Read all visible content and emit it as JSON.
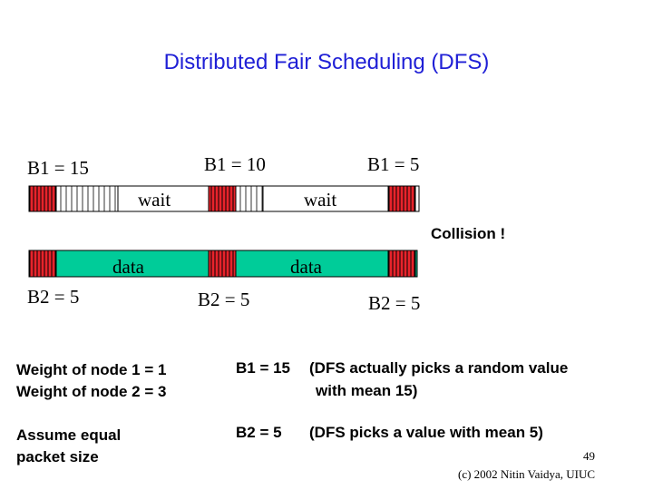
{
  "title": "Distributed Fair Scheduling (DFS)",
  "timeline_labels": {
    "b1_first": "B1 = 15",
    "b1_second": "B1 = 10",
    "b1_third": "B1 = 5",
    "wait_first": "wait",
    "wait_second": "wait",
    "collision": "Collision !",
    "data_first": "data",
    "data_second": "data",
    "b2_first": "B2 = 5",
    "b2_second": "B2 = 5",
    "b2_third": "B2 = 5"
  },
  "notes": {
    "weight1": "Weight of node 1 = 1",
    "weight2": "Weight of node 2 = 3",
    "assume1": "Assume equal",
    "assume2": "packet size",
    "b1_eq": "B1 = 15",
    "b1_desc1": "(DFS actually picks a random value",
    "b1_desc2": "with mean 15)",
    "b2_eq": "B2 = 5",
    "b2_desc": "(DFS picks a value with mean 5)"
  },
  "footer": {
    "page_number": "49",
    "copyright": "(c) 2002 Nitin Vaidya, UIUC"
  },
  "colors": {
    "title": "#1f1fd6",
    "red_slot": "#e8232b",
    "data_fill": "#00cc99",
    "outline": "#000000"
  }
}
